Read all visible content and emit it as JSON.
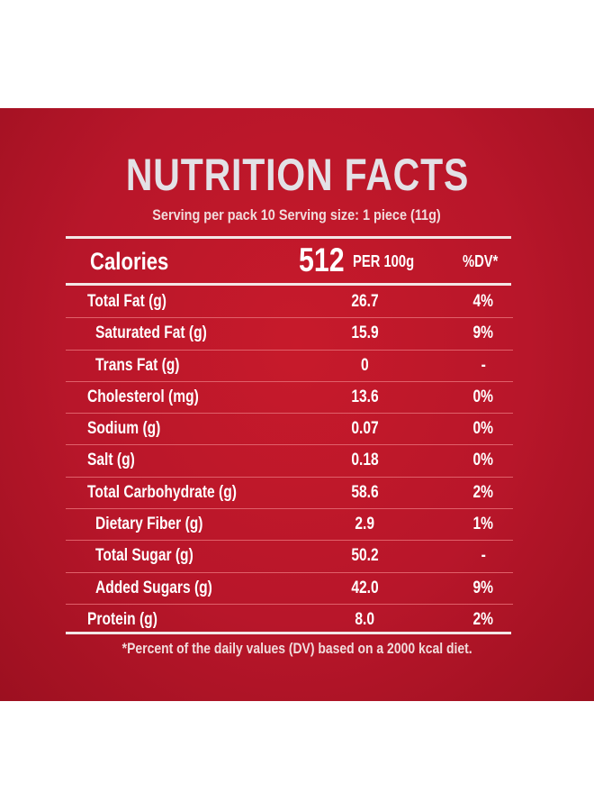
{
  "title": "NUTRITION FACTS",
  "serving": "Serving per pack 10 Serving size: 1 piece (11g)",
  "calories": {
    "label": "Calories",
    "value": "512",
    "unit": "PER 100g",
    "dv_header": "%DV*"
  },
  "rows": [
    {
      "name": "Total Fat (g)",
      "value": "26.7",
      "dv": "4%",
      "sub": false
    },
    {
      "name": "Saturated Fat (g)",
      "value": "15.9",
      "dv": "9%",
      "sub": true
    },
    {
      "name": "Trans Fat (g)",
      "value": "0",
      "dv": "-",
      "sub": true
    },
    {
      "name": "Cholesterol (mg)",
      "value": "13.6",
      "dv": "0%",
      "sub": false
    },
    {
      "name": "Sodium (g)",
      "value": "0.07",
      "dv": "0%",
      "sub": false
    },
    {
      "name": "Salt (g)",
      "value": "0.18",
      "dv": "0%",
      "sub": false
    },
    {
      "name": "Total Carbohydrate (g)",
      "value": "58.6",
      "dv": "2%",
      "sub": false
    },
    {
      "name": "Dietary Fiber (g)",
      "value": "2.9",
      "dv": "1%",
      "sub": true
    },
    {
      "name": "Total Sugar (g)",
      "value": "50.2",
      "dv": "-",
      "sub": true
    },
    {
      "name": "Added Sugars (g)",
      "value": "42.0",
      "dv": "9%",
      "sub": true
    },
    {
      "name": "Protein (g)",
      "value": "8.0",
      "dv": "2%",
      "sub": false
    }
  ],
  "footnote": "*Percent of the daily values (DV) based on a 2000 kcal diet.",
  "colors": {
    "panel": "#b8162a",
    "text": "#ffffff",
    "title": "#e3e1e6"
  }
}
